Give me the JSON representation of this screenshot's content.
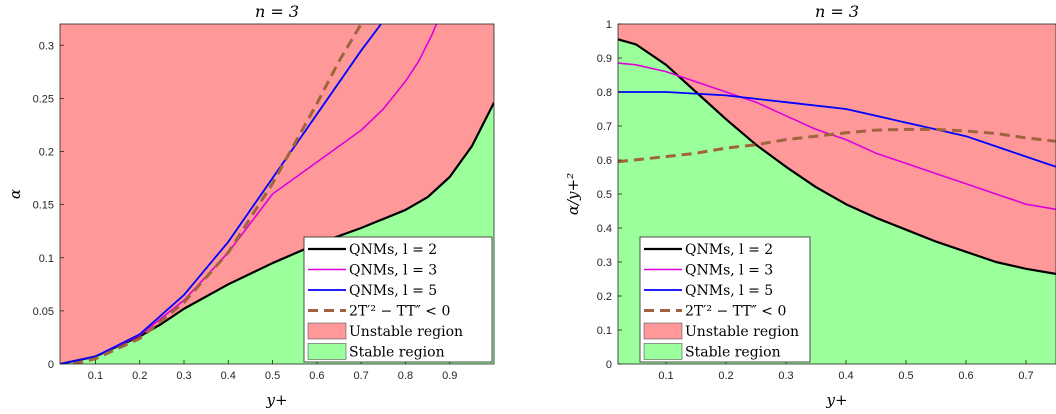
{
  "colors": {
    "unstable": "#ff9999",
    "stable": "#9bff9b",
    "qnm_l2": "#000000",
    "qnm_l3": "#dd00dd",
    "qnm_l5": "#0000ff",
    "criterion": "#a0643c"
  },
  "chart_data": [
    {
      "type": "line",
      "title": "n = 3",
      "xlabel": "y+",
      "ylabel": "α",
      "xlim": [
        0.02,
        1.0
      ],
      "ylim": [
        0,
        0.32
      ],
      "xticks": [
        "0.1",
        "0.2",
        "0.3",
        "0.4",
        "0.5",
        "0.6",
        "0.7",
        "0.8",
        "0.9"
      ],
      "yticks": [
        "0",
        "0.05",
        "0.1",
        "0.15",
        "0.2",
        "0.25",
        "0.3"
      ],
      "legend_position": "bottom-right",
      "legend": [
        "QNMs, l = 2",
        "QNMs, l = 3",
        "QNMs, l = 5",
        "2T′² − TT″ < 0",
        "Unstable region",
        "Stable region"
      ],
      "series": [
        {
          "name": "QNMs, l = 2",
          "x": [
            0.02,
            0.1,
            0.2,
            0.25,
            0.3,
            0.4,
            0.5,
            0.6,
            0.7,
            0.8,
            0.85,
            0.9,
            0.95,
            1.0
          ],
          "values": [
            0,
            0.007,
            0.026,
            0.038,
            0.052,
            0.075,
            0.095,
            0.113,
            0.128,
            0.145,
            0.157,
            0.176,
            0.205,
            0.246
          ]
        },
        {
          "name": "QNMs, l = 3",
          "x": [
            0.02,
            0.1,
            0.2,
            0.3,
            0.4,
            0.5,
            0.6,
            0.7,
            0.75,
            0.8,
            0.83,
            0.86,
            0.87
          ],
          "values": [
            0,
            0.007,
            0.027,
            0.06,
            0.105,
            0.16,
            0.19,
            0.22,
            0.24,
            0.266,
            0.285,
            0.31,
            0.32
          ]
        },
        {
          "name": "QNMs, l = 5",
          "x": [
            0.02,
            0.1,
            0.2,
            0.3,
            0.4,
            0.5,
            0.6,
            0.7,
            0.745
          ],
          "values": [
            0,
            0.007,
            0.028,
            0.065,
            0.115,
            0.175,
            0.235,
            0.295,
            0.32
          ]
        },
        {
          "name": "2T′² − TT″ < 0",
          "x": [
            0.05,
            0.1,
            0.2,
            0.3,
            0.4,
            0.5,
            0.6,
            0.65,
            0.7
          ],
          "values": [
            0,
            0.005,
            0.024,
            0.058,
            0.105,
            0.17,
            0.245,
            0.285,
            0.32
          ]
        }
      ],
      "stable_boundary": "QNMs, l = 2"
    },
    {
      "type": "line",
      "title": "n = 3",
      "xlabel": "y+",
      "ylabel": "α/y+²",
      "xlim": [
        0.02,
        0.75
      ],
      "ylim": [
        0,
        1.0
      ],
      "xticks": [
        "0.1",
        "0.2",
        "0.3",
        "0.4",
        "0.5",
        "0.6",
        "0.7"
      ],
      "yticks": [
        "0",
        "0.1",
        "0.2",
        "0.3",
        "0.4",
        "0.5",
        "0.6",
        "0.7",
        "0.8",
        "0.9",
        "1"
      ],
      "legend_position": "bottom-left",
      "legend": [
        "QNMs, l = 2",
        "QNMs, l = 3",
        "QNMs, l = 5",
        "2T′² − TT″ < 0",
        "Unstable region",
        "Stable region"
      ],
      "series": [
        {
          "name": "QNMs, l = 2",
          "x": [
            0.02,
            0.05,
            0.1,
            0.15,
            0.2,
            0.25,
            0.3,
            0.35,
            0.4,
            0.45,
            0.5,
            0.55,
            0.6,
            0.65,
            0.7,
            0.75
          ],
          "values": [
            0.955,
            0.94,
            0.88,
            0.8,
            0.72,
            0.645,
            0.58,
            0.52,
            0.47,
            0.43,
            0.395,
            0.36,
            0.33,
            0.3,
            0.28,
            0.265
          ]
        },
        {
          "name": "QNMs, l = 3",
          "x": [
            0.02,
            0.05,
            0.1,
            0.15,
            0.2,
            0.25,
            0.3,
            0.35,
            0.4,
            0.45,
            0.5,
            0.55,
            0.6,
            0.65,
            0.7,
            0.75
          ],
          "values": [
            0.885,
            0.88,
            0.86,
            0.83,
            0.8,
            0.77,
            0.73,
            0.69,
            0.66,
            0.62,
            0.59,
            0.56,
            0.53,
            0.5,
            0.47,
            0.455
          ]
        },
        {
          "name": "QNMs, l = 5",
          "x": [
            0.02,
            0.1,
            0.2,
            0.3,
            0.4,
            0.5,
            0.6,
            0.65,
            0.7,
            0.75
          ],
          "values": [
            0.8,
            0.8,
            0.79,
            0.77,
            0.75,
            0.71,
            0.67,
            0.64,
            0.61,
            0.58
          ]
        },
        {
          "name": "2T′² − TT″ < 0",
          "x": [
            0.02,
            0.1,
            0.15,
            0.2,
            0.25,
            0.3,
            0.35,
            0.4,
            0.45,
            0.5,
            0.55,
            0.6,
            0.65,
            0.7,
            0.75
          ],
          "values": [
            0.595,
            0.61,
            0.62,
            0.635,
            0.645,
            0.66,
            0.67,
            0.68,
            0.688,
            0.69,
            0.69,
            0.685,
            0.678,
            0.665,
            0.655
          ]
        }
      ],
      "stable_boundary": "QNMs, l = 2"
    }
  ]
}
